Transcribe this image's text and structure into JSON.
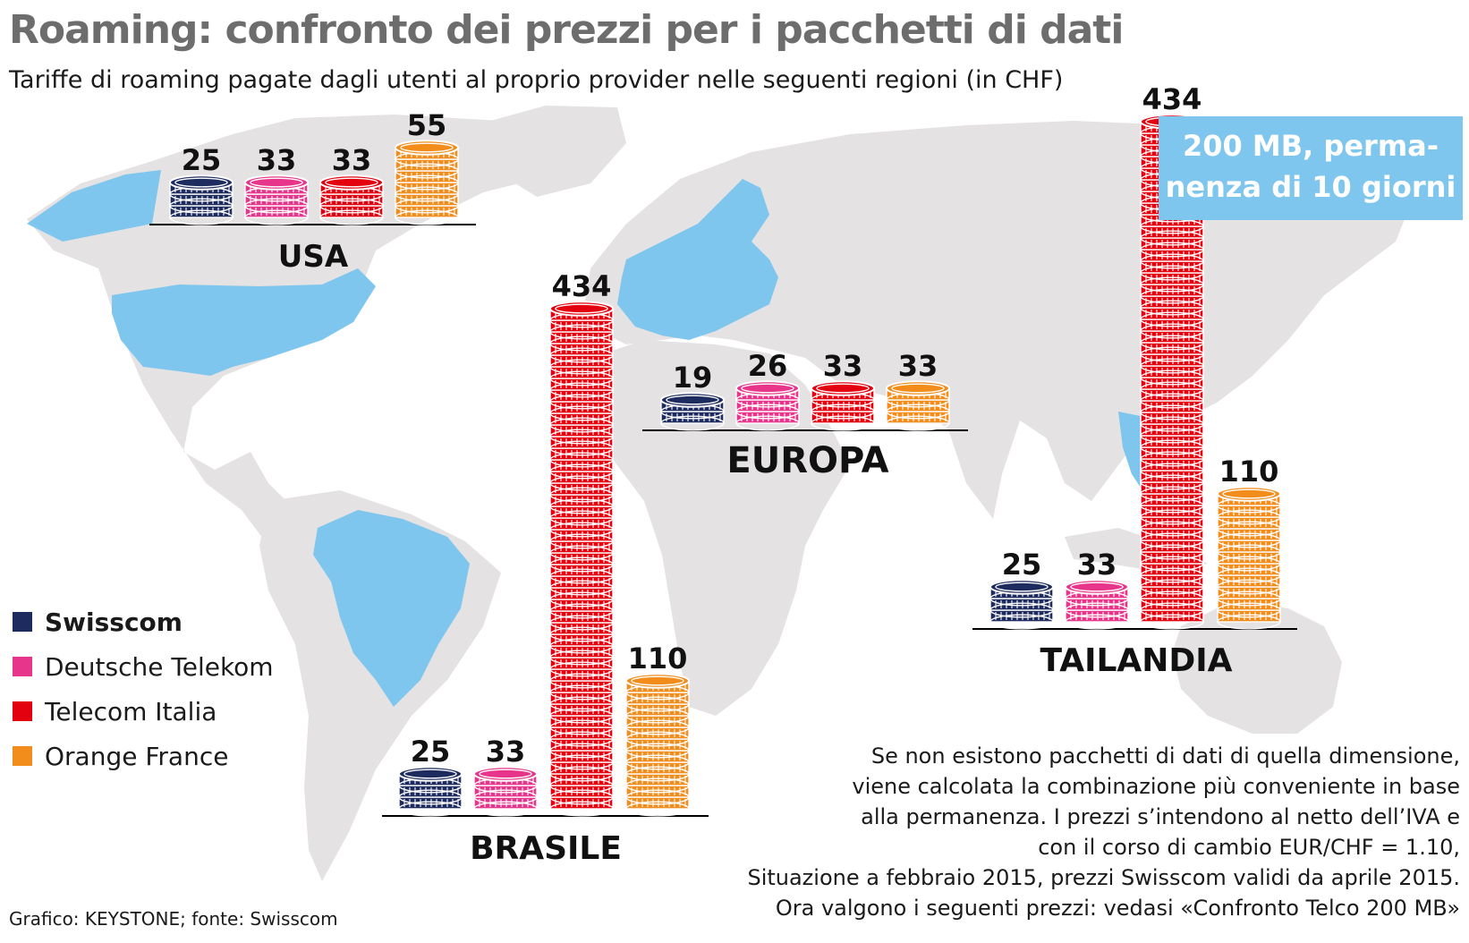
{
  "title": "Roaming: confronto dei prezzi per i pacchetti di dati",
  "subtitle": "Tariffe di roaming pagate dagli utenti al proprio provider nelle seguenti regioni (in CHF)",
  "badge": {
    "line1": "200 MB, perma-",
    "line2": "nenza di 10 giorni"
  },
  "legend": [
    {
      "label": "Swisscom",
      "color": "#1d2b5e"
    },
    {
      "label": "Deutsche Telekom",
      "color": "#e6358b"
    },
    {
      "label": "Telecom Italia",
      "color": "#e3000f"
    },
    {
      "label": "Orange France",
      "color": "#f28c1a"
    }
  ],
  "note": [
    "Se non esistono pacchetti di dati di quella dimensione,",
    "viene calcolata la combinazione più conveniente in base",
    "alla permanenza. I prezzi s’intendono al netto dell’IVA e",
    "con il corso di cambio EUR/CHF = 1.10,",
    "Situazione a febbraio 2015, prezzi Swisscom validi da aprile 2015.",
    "Ora valgono i seguenti prezzi: vedasi «Confronto Telco 200 MB»"
  ],
  "source": "Grafico: KEYSTONE; fonte: Swisscom",
  "colors": {
    "map_land": "#e4e2e2",
    "map_highlight": "#7ec6ee",
    "badge": "#7ec6ee"
  },
  "chart_data": {
    "type": "bar",
    "unit": "CHF",
    "series_names": [
      "Swisscom",
      "Deutsche Telekom",
      "Telecom Italia",
      "Orange France"
    ],
    "groups": [
      {
        "region": "USA",
        "values": [
          25,
          33,
          33,
          55
        ]
      },
      {
        "region": "EUROPA",
        "values": [
          19,
          26,
          33,
          33
        ]
      },
      {
        "region": "TAILANDIA",
        "values": [
          25,
          33,
          434,
          110
        ]
      },
      {
        "region": "BRASILE",
        "values": [
          25,
          33,
          434,
          110
        ]
      }
    ]
  }
}
